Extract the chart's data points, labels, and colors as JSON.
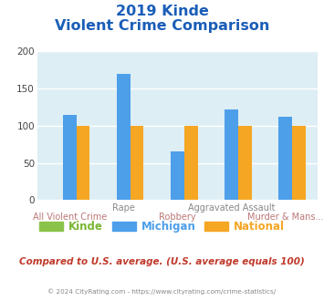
{
  "title_line1": "2019 Kinde",
  "title_line2": "Violent Crime Comparison",
  "x_labels_top": [
    "",
    "Rape",
    "",
    "Aggravated Assault",
    ""
  ],
  "x_labels_bottom": [
    "All Violent Crime",
    "",
    "Robbery",
    "",
    "Murder & Mans..."
  ],
  "kinde": [
    0,
    0,
    0,
    0,
    0
  ],
  "michigan": [
    115,
    170,
    65,
    122,
    112
  ],
  "national": [
    100,
    100,
    100,
    100,
    100
  ],
  "bar_colors": {
    "kinde": "#8bc34a",
    "michigan": "#4d9fea",
    "national": "#f5a623"
  },
  "ylim": [
    0,
    200
  ],
  "yticks": [
    0,
    50,
    100,
    150,
    200
  ],
  "title_color": "#1a5eb8",
  "title_fontsize": 11.5,
  "legend_labels": [
    "Kinde",
    "Michigan",
    "National"
  ],
  "legend_colors": [
    "#7ab632",
    "#4d9fea",
    "#f5a623"
  ],
  "note_text": "Compared to U.S. average. (U.S. average equals 100)",
  "note_color": "#c0392b",
  "copyright_text": "© 2024 CityRating.com - https://www.cityrating.com/crime-statistics/",
  "copyright_color": "#888888",
  "plot_bg_color": "#ddeef4",
  "grid_color": "#ffffff",
  "xtop_color": "#888888",
  "xbot_color": "#bb7777"
}
